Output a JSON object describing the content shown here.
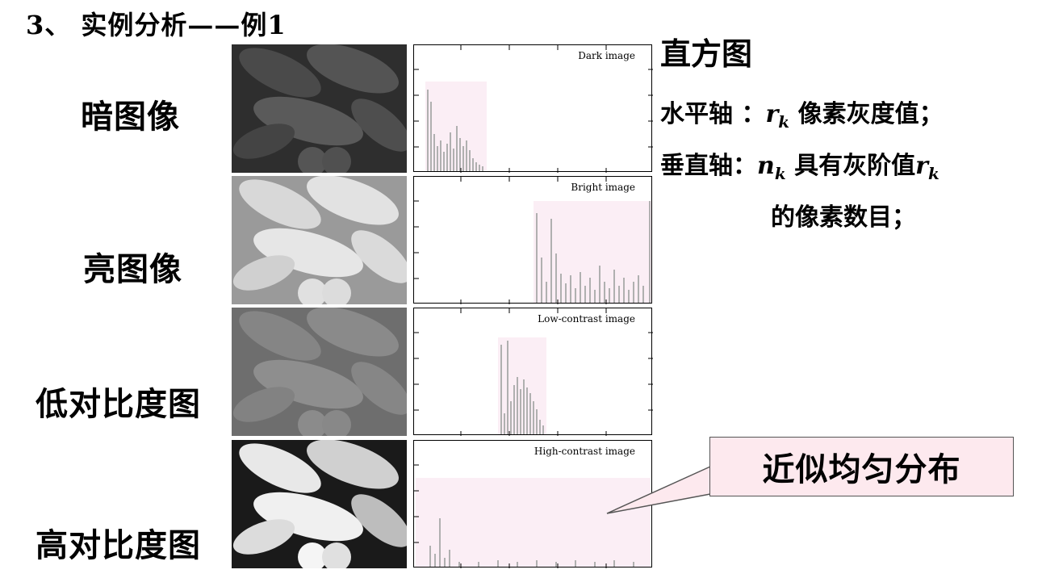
{
  "slide": {
    "title": "3、 实例分析——例1"
  },
  "rows": [
    {
      "label": "暗图像",
      "hist_title": "Dark image"
    },
    {
      "label": "亮图像",
      "hist_title": "Bright image"
    },
    {
      "label": "低对比度图",
      "hist_title": "Low-contrast image"
    },
    {
      "label": "高对比度图",
      "hist_title": "High-contrast image"
    }
  ],
  "sidebar": {
    "heading": "直方图",
    "horizontal_axis": {
      "prefix": "水平轴 ：",
      "symbol": "r",
      "sub": "k",
      "text": " 像素灰度值；"
    },
    "vertical_axis": {
      "prefix": "垂直轴：",
      "symbol": "n",
      "sub": "k",
      "text": " 具有灰阶值",
      "symbol2": "r",
      "sub2": "k"
    },
    "vertical_axis_cont": "的像素数目；"
  },
  "callout": {
    "text": "近似均匀分布"
  },
  "colors": {
    "callout_bg": "#fde9ee",
    "hist_shade": "#fbeef5",
    "bar": "#b0b0b0"
  }
}
